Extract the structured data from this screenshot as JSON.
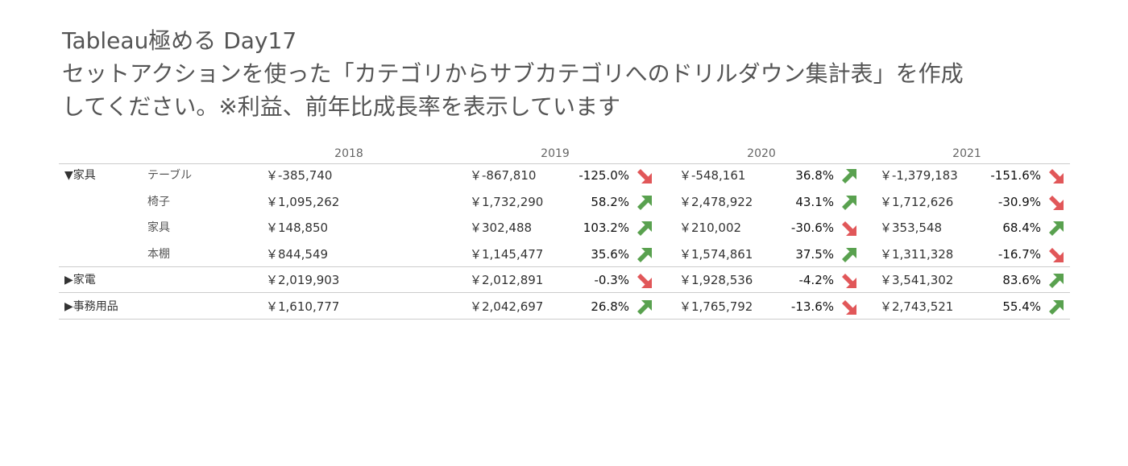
{
  "title": {
    "line1": "Tableau極める Day17",
    "line2": "セットアクションを使った「カテゴリからサブカテゴリへのドリルダウン集計表」を作成",
    "line3": "してください。※利益、前年比成長率を表示しています"
  },
  "years": [
    "2018",
    "2019",
    "2020",
    "2021"
  ],
  "colors": {
    "up": "#59a14f",
    "down": "#e15759"
  },
  "rows": [
    {
      "category": "▼家具",
      "subcategory": "テーブル",
      "values": [
        "￥-385,740",
        "￥-867,810",
        "￥-548,161",
        "￥-1,379,183"
      ],
      "growth": [
        "-125.0%",
        "36.8%",
        "-151.6%"
      ],
      "trend": [
        "down",
        "up",
        "down"
      ]
    },
    {
      "category": "",
      "subcategory": "椅子",
      "values": [
        "￥1,095,262",
        "￥1,732,290",
        "￥2,478,922",
        "￥1,712,626"
      ],
      "growth": [
        "58.2%",
        "43.1%",
        "-30.9%"
      ],
      "trend": [
        "up",
        "up",
        "down"
      ]
    },
    {
      "category": "",
      "subcategory": "家具",
      "values": [
        "￥148,850",
        "￥302,488",
        "￥210,002",
        "￥353,548"
      ],
      "growth": [
        "103.2%",
        "-30.6%",
        "68.4%"
      ],
      "trend": [
        "up",
        "down",
        "up"
      ]
    },
    {
      "category": "",
      "subcategory": "本棚",
      "values": [
        "￥844,549",
        "￥1,145,477",
        "￥1,574,861",
        "￥1,311,328"
      ],
      "growth": [
        "35.6%",
        "37.5%",
        "-16.7%"
      ],
      "trend": [
        "up",
        "up",
        "down"
      ]
    },
    {
      "category": "▶家電",
      "subcategory": "",
      "values": [
        "￥2,019,903",
        "￥2,012,891",
        "￥1,928,536",
        "￥3,541,302"
      ],
      "growth": [
        "-0.3%",
        "-4.2%",
        "83.6%"
      ],
      "trend": [
        "down",
        "down",
        "up"
      ]
    },
    {
      "category": "▶事務用品",
      "subcategory": "",
      "values": [
        "￥1,610,777",
        "￥2,042,697",
        "￥1,765,792",
        "￥2,743,521"
      ],
      "growth": [
        "26.8%",
        "-13.6%",
        "55.4%"
      ],
      "trend": [
        "up",
        "down",
        "up"
      ]
    }
  ]
}
